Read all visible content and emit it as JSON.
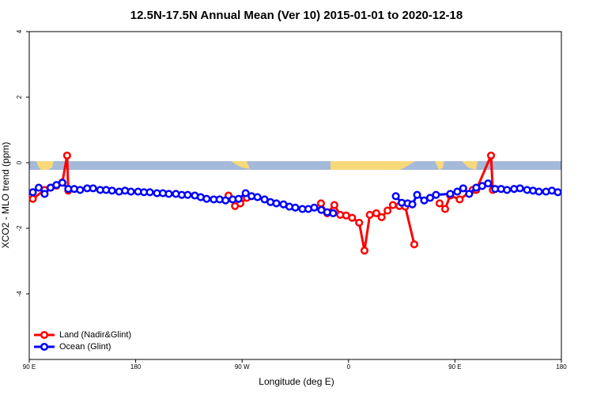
{
  "chart_data": {
    "type": "line",
    "title": "12.5N-17.5N Annual Mean (Ver 10)   2015-01-01 to 2020-12-18",
    "x_label": "Longitude (deg E)",
    "y_label": "XCO2 - MLO trend (ppm)",
    "xlim": [
      90,
      540
    ],
    "xticks": [
      {
        "value": 90,
        "label": "90 E"
      },
      180,
      {
        "value": 270,
        "label": "90 W"
      },
      {
        "value": 360,
        "label": "0"
      },
      {
        "value": 450,
        "label": "90 E"
      },
      {
        "value": 540,
        "label": "180"
      }
    ],
    "ylim": [
      -6,
      4
    ],
    "yticks": [
      -4,
      -2,
      0,
      2,
      4
    ],
    "legend": "bottom-left",
    "series": [
      {
        "name": "Land (Nadir&Glint)",
        "color": "#ff0000",
        "x": [
          93,
          103,
          108,
          113,
          118,
          122,
          123,
          null,
          258.5,
          264,
          268.5,
          274,
          null,
          336.7,
          342,
          348,
          353,
          358,
          363,
          369,
          373.5,
          378,
          383.5,
          388,
          393,
          397.5,
          403,
          408,
          415.6,
          null,
          437,
          441.7,
          446,
          454,
          465,
          468,
          480.5,
          482
        ],
        "values": [
          -1.1,
          -0.83,
          -0.76,
          -0.7,
          -0.6,
          0.22,
          -0.85,
          null,
          -1.0,
          -1.32,
          -1.24,
          -1.07,
          null,
          -1.24,
          -1.54,
          -1.29,
          -1.59,
          -1.61,
          -1.68,
          -1.83,
          -2.68,
          -1.59,
          -1.54,
          -1.66,
          -1.46,
          -1.29,
          -1.32,
          -1.34,
          -2.49,
          null,
          -1.24,
          -1.41,
          -1.0,
          -1.12,
          -0.83,
          -0.83,
          0.22,
          -0.83
        ]
      },
      {
        "name": "Ocean (Glint)",
        "color": "#0000ff",
        "x": [
          93,
          98,
          103,
          108,
          113,
          118,
          123,
          128,
          133,
          139,
          144,
          150,
          155,
          160,
          166,
          171,
          176,
          182,
          187,
          192,
          198,
          203,
          208,
          214,
          219,
          224,
          230,
          235,
          240,
          246,
          251,
          256,
          262,
          267,
          273,
          278,
          283,
          289,
          294,
          299,
          305,
          310,
          315,
          321,
          326,
          331,
          337,
          342,
          347,
          null,
          400,
          405,
          410,
          414,
          418,
          424,
          429,
          434,
          446,
          452,
          457,
          462,
          468,
          473,
          478,
          484,
          489,
          494,
          500,
          505,
          511,
          516,
          521,
          527,
          532,
          537
        ],
        "values": [
          -0.9,
          -0.76,
          -0.95,
          -0.76,
          -0.68,
          -0.61,
          -0.8,
          -0.8,
          -0.83,
          -0.78,
          -0.78,
          -0.83,
          -0.83,
          -0.85,
          -0.88,
          -0.85,
          -0.88,
          -0.88,
          -0.9,
          -0.9,
          -0.93,
          -0.93,
          -0.95,
          -0.95,
          -0.98,
          -0.98,
          -1.0,
          -1.05,
          -1.1,
          -1.12,
          -1.12,
          -1.15,
          -1.12,
          -1.1,
          -0.93,
          -1.02,
          -1.05,
          -1.12,
          -1.2,
          -1.24,
          -1.27,
          -1.34,
          -1.37,
          -1.41,
          -1.41,
          -1.37,
          -1.44,
          -1.51,
          -1.54,
          null,
          -1.02,
          -1.22,
          -1.24,
          -1.27,
          -0.98,
          -1.15,
          -1.07,
          -0.98,
          -0.95,
          -0.88,
          -0.78,
          -0.95,
          -0.76,
          -0.71,
          -0.63,
          -0.8,
          -0.8,
          -0.83,
          -0.8,
          -0.78,
          -0.83,
          -0.85,
          -0.88,
          -0.88,
          -0.85,
          -0.9
        ]
      }
    ]
  }
}
